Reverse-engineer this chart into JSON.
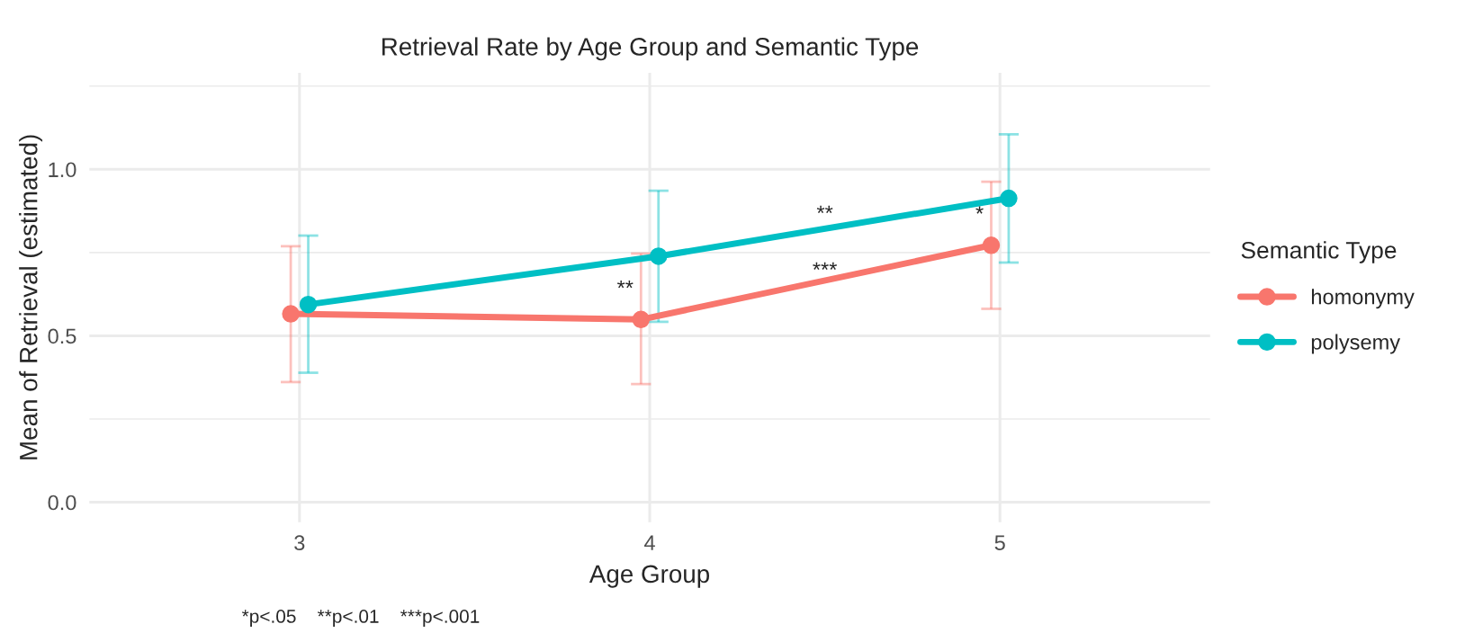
{
  "chart_data": {
    "type": "line",
    "title": "Retrieval Rate by Age Group and Semantic Type",
    "xlabel": "Age Group",
    "ylabel": "Mean of Retrieval (estimated)",
    "legend_title": "Semantic Type",
    "series": [
      {
        "name": "homonymy",
        "color": "#f8766d",
        "x": [
          2.975,
          3.975,
          4.975
        ],
        "values": [
          0.566,
          0.549,
          0.772
        ],
        "errors": [
          [
            0.361,
            0.769
          ],
          [
            0.355,
            0.747
          ],
          [
            0.581,
            0.963
          ]
        ]
      },
      {
        "name": "polysemy",
        "color": "#00bfc4",
        "x": [
          3.025,
          4.025,
          5.025
        ],
        "values": [
          0.594,
          0.739,
          0.913
        ],
        "errors": [
          [
            0.389,
            0.801
          ],
          [
            0.542,
            0.936
          ],
          [
            0.72,
            1.105
          ]
        ]
      }
    ],
    "xlim": [
      2.4,
      5.6
    ],
    "xticks": [
      3,
      4,
      5
    ],
    "ylim": [
      -0.06,
      1.29
    ],
    "yticks": [
      {
        "value": 0,
        "label": "0.0"
      },
      {
        "value": 0.25,
        "label": null
      },
      {
        "value": 0.5,
        "label": "0.5"
      },
      {
        "value": 0.75,
        "label": null
      },
      {
        "value": 1.0,
        "label": "1.0"
      },
      {
        "value": 1.25,
        "label": null
      }
    ],
    "annotations": [
      {
        "text": "**",
        "x": 4.5,
        "y": 0.83
      },
      {
        "text": "***",
        "x": 4.5,
        "y": 0.66
      },
      {
        "text": "**",
        "x": 3.975,
        "y": 0.549
      },
      {
        "text": "*",
        "x": 4.975,
        "y": 0.772
      },
      "*p<.05    **p<.01    ***p<.001"
    ],
    "grid": true,
    "legend": "right",
    "marker": "circle",
    "line_style": "solid"
  }
}
